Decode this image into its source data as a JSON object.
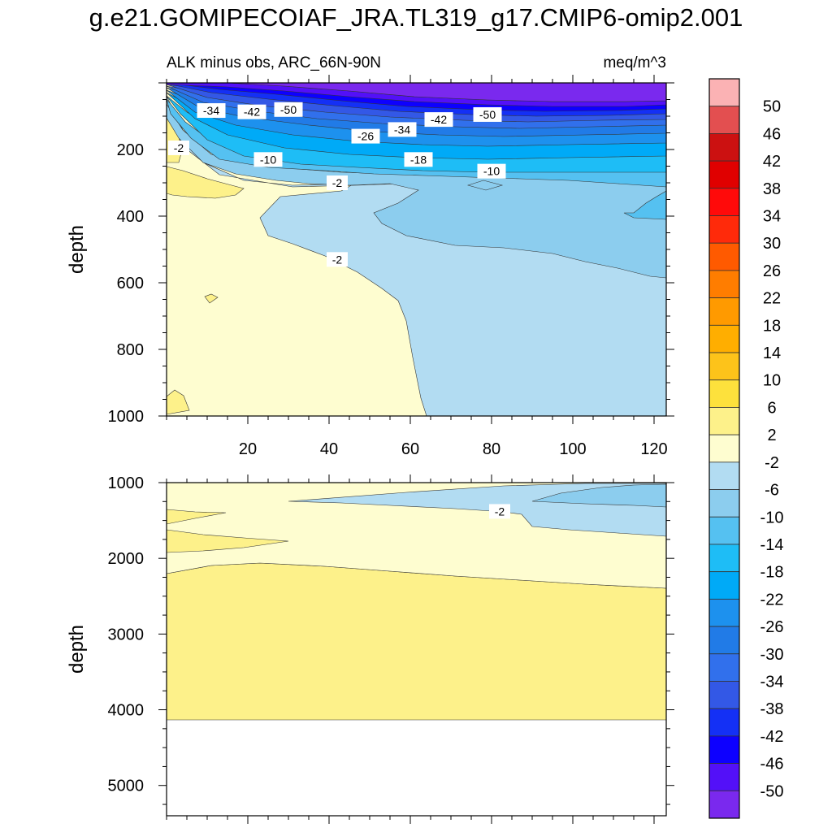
{
  "title": "g.e21.GOMIPECOIAF_JRA.TL319_g17.CMIP6-omip2.001",
  "subtitle_left": "ALK minus obs, ARC_66N-90N",
  "subtitle_right": "meq/m^3",
  "chart_data": [
    {
      "type": "contour",
      "panel": "upper",
      "variable": "ALK minus obs",
      "region": "ARC_66N-90N",
      "units": "meq/m^3",
      "xlabel": "",
      "ylabel": "depth",
      "xlim": [
        0,
        123
      ],
      "ylim": [
        1000,
        0
      ],
      "xticks": [
        20,
        40,
        60,
        80,
        100,
        120
      ],
      "yticks": [
        200,
        400,
        600,
        800,
        1000
      ],
      "contour_labels": [
        {
          "text": "-34",
          "x": 11,
          "depth": 83
        },
        {
          "text": "-42",
          "x": 21,
          "depth": 87
        },
        {
          "text": "-50",
          "x": 30,
          "depth": 80
        },
        {
          "text": "-42",
          "x": 67,
          "depth": 110
        },
        {
          "text": "-50",
          "x": 79,
          "depth": 95
        },
        {
          "text": "-34",
          "x": 58,
          "depth": 140
        },
        {
          "text": "-26",
          "x": 49,
          "depth": 160
        },
        {
          "text": "-2",
          "x": 3,
          "depth": 195
        },
        {
          "text": "-10",
          "x": 25,
          "depth": 230
        },
        {
          "text": "-18",
          "x": 62,
          "depth": 230
        },
        {
          "text": "-10",
          "x": 80,
          "depth": 265
        },
        {
          "text": "-2",
          "x": 42,
          "depth": 300
        },
        {
          "text": "-2",
          "x": 42,
          "depth": 530
        }
      ]
    },
    {
      "type": "contour",
      "panel": "lower",
      "variable": "ALK minus obs",
      "region": "ARC_66N-90N",
      "units": "meq/m^3",
      "xlabel": "",
      "ylabel": "depth",
      "xlim": [
        0,
        123
      ],
      "ylim": [
        5400,
        1000
      ],
      "xticks": [],
      "yticks": [
        1000,
        2000,
        3000,
        4000,
        5000
      ],
      "contour_labels": [
        {
          "text": "-2",
          "x": 82,
          "depth": 1380
        }
      ]
    },
    {
      "type": "colorbar",
      "levels": [
        "50",
        "46",
        "42",
        "38",
        "34",
        "30",
        "26",
        "22",
        "18",
        "14",
        "10",
        "6",
        "2",
        "-2",
        "-6",
        "-10",
        "-14",
        "-18",
        "-22",
        "-26",
        "-30",
        "-34",
        "-38",
        "-42",
        "-46",
        "-50"
      ],
      "colors": [
        "#fbb2b4",
        "#e34f50",
        "#cc1111",
        "#e00000",
        "#ff0a0a",
        "#ff2a0a",
        "#ff5a00",
        "#ff7d00",
        "#ff9a00",
        "#ffae00",
        "#fdc31a",
        "#fde13c",
        "#fdf18a",
        "#fefdd0",
        "#b2dcf2",
        "#8ccdee",
        "#55c1f1",
        "#1ebdf6",
        "#00aaf7",
        "#1d91ee",
        "#217be7",
        "#3170ec",
        "#3358e6",
        "#1430f5",
        "#0d00ff",
        "#5310f8",
        "#7a29ee"
      ]
    }
  ]
}
